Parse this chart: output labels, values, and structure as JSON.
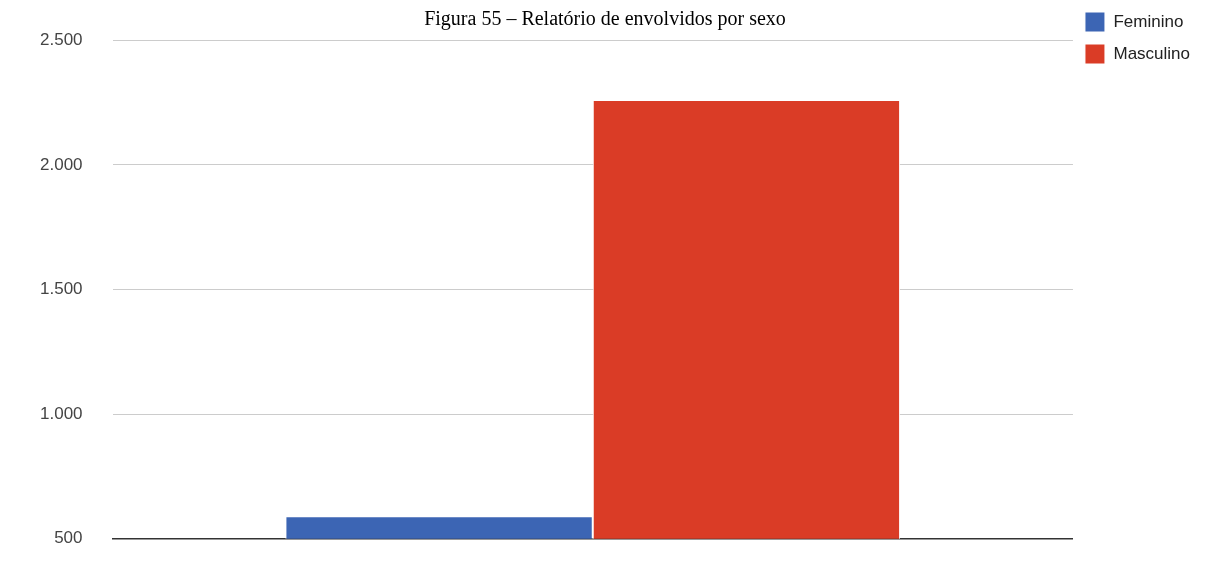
{
  "chart_data": {
    "type": "bar",
    "title": "Figura 55 – Relatório de envolvidos por sexo",
    "categories": [
      null
    ],
    "series": [
      {
        "name": "Feminino",
        "color": "#3c65b4",
        "values": [
          590
        ]
      },
      {
        "name": "Masculino",
        "color": "#da3c26",
        "values": [
          2260
        ]
      }
    ],
    "ylim": [
      500,
      2500
    ],
    "yticks": [
      {
        "value": 500,
        "label": "500"
      },
      {
        "value": 1000,
        "label": "1.000"
      },
      {
        "value": 1500,
        "label": "1.500"
      },
      {
        "value": 2000,
        "label": "2.000"
      },
      {
        "value": 2500,
        "label": "2.500"
      }
    ],
    "grid": "y",
    "legend": "top right"
  }
}
